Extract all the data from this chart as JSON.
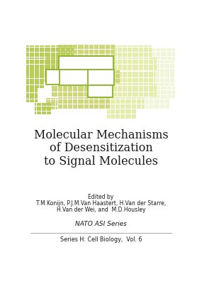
{
  "background_color": "#ffffff",
  "title_line1": "Molecular Mechanisms",
  "title_line2": "of Desensitization",
  "title_line3": "to Signal Molecules",
  "title_fontsize": 11.5,
  "title_color": "#1a1a1a",
  "edited_by": "Edited by",
  "editors_line1": "T.M.Konijn, P.J.M.Van Haastert, H.Van der Starre,",
  "editors_line2": "H.Van der Wei, and  M.D.Housley",
  "editors_fontsize": 5.5,
  "series_label": "NATO ASI Series",
  "series_label_fontsize": 6.5,
  "series_sub": "Series H: Cell Biology,  Vol. 6",
  "series_sub_fontsize": 5.8,
  "green_dark": "#8cb428",
  "green_light": "#b8cc5a",
  "green_pale": "#ced87a",
  "green_faint": "#e4eeaa",
  "green_vfaint": "#f2f6d8"
}
